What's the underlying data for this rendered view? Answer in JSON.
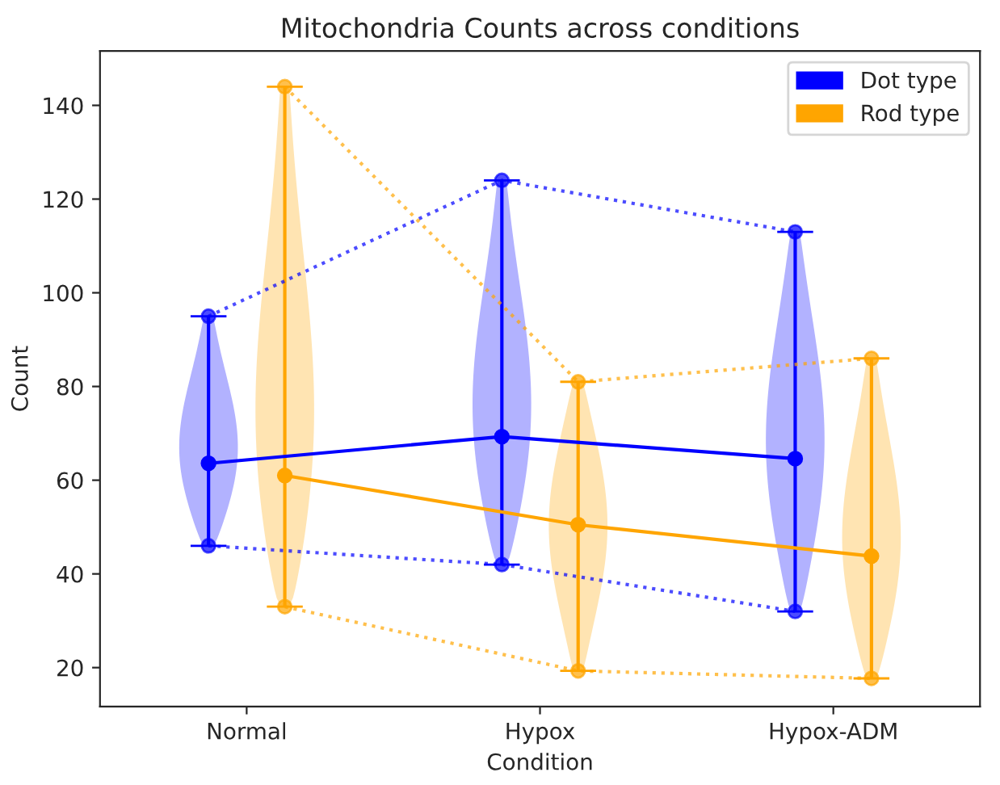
{
  "chart_data": {
    "type": "line",
    "title": "Mitochondria Counts across conditions",
    "xlabel": "Condition",
    "ylabel": "Count",
    "categories": [
      "Normal",
      "Hypox",
      "Hypox-ADM"
    ],
    "ylim": [
      11.7,
      151.6
    ],
    "yticks": [
      20,
      40,
      60,
      80,
      100,
      120,
      140
    ],
    "series": [
      {
        "name": "Dot type",
        "color": "#0000ff",
        "values": [
          63.6,
          69.3,
          64.6
        ],
        "errors": [
          [
            46,
            95
          ],
          [
            42,
            124
          ],
          [
            32,
            113
          ]
        ],
        "line_style": "solid"
      },
      {
        "name": "Rod type",
        "color": "#ffa500",
        "values": [
          61,
          50.5,
          43.8
        ],
        "errors": [
          [
            33,
            144
          ],
          [
            19.3,
            81
          ],
          [
            17.7,
            86
          ]
        ],
        "line_style": "solid"
      },
      {
        "color": "#0000ff",
        "values": [
          95,
          124,
          113
        ],
        "line_style": "dotted"
      },
      {
        "color": "#0000ff",
        "values": [
          46,
          42,
          32
        ],
        "line_style": "dotted"
      },
      {
        "color": "#ffa500",
        "values": [
          144,
          81,
          86
        ],
        "line_style": "dotted"
      },
      {
        "color": "#ffa500",
        "values": [
          33,
          19.3,
          17.7
        ],
        "line_style": "dotted"
      }
    ],
    "marker": "circle",
    "legend": "top right",
    "grid": false
  }
}
